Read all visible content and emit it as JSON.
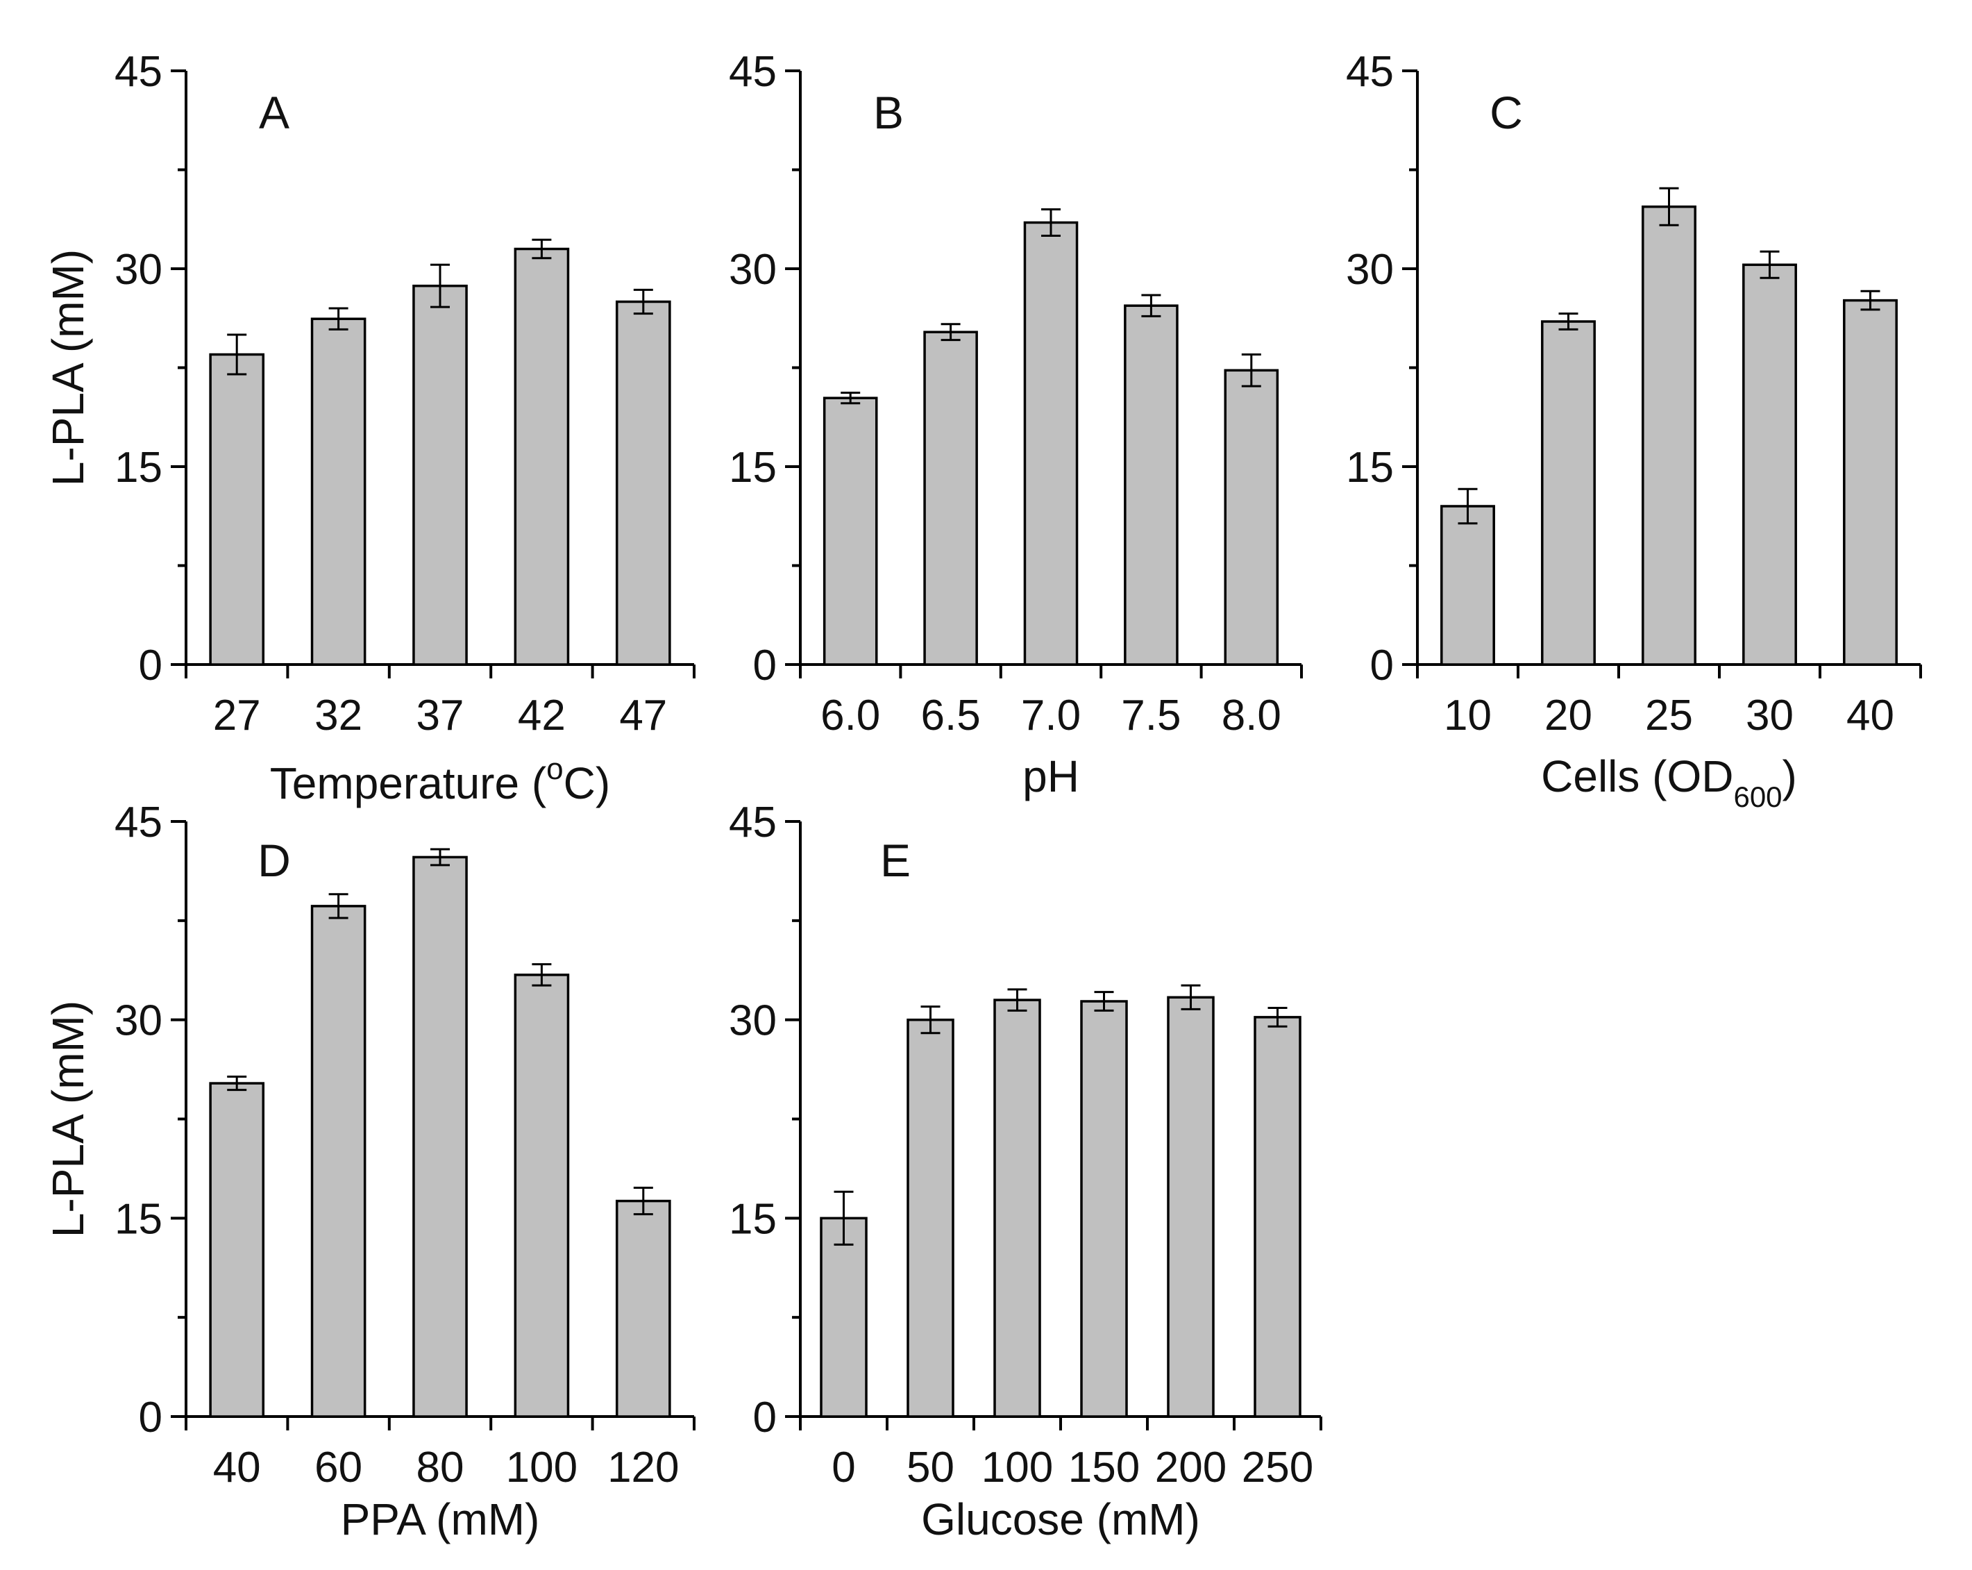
{
  "figure": {
    "ylabel": "L-PLA (mM)"
  },
  "chart_data": [
    {
      "type": "bar",
      "panel": "A",
      "categories": [
        "27",
        "32",
        "37",
        "42",
        "47"
      ],
      "values": [
        23.5,
        26.2,
        28.7,
        31.5,
        27.5
      ],
      "errors": [
        1.5,
        0.8,
        1.6,
        0.7,
        0.9
      ],
      "xlabel": "Temperature (",
      "xlabel_sup": "o",
      "xlabel_end": "C)",
      "ylabel": "L-PLA (mM)",
      "ylim": [
        0,
        45
      ],
      "yticks": [
        0,
        15,
        30,
        45
      ]
    },
    {
      "type": "bar",
      "panel": "B",
      "categories": [
        "6.0",
        "6.5",
        "7.0",
        "7.5",
        "8.0"
      ],
      "values": [
        20.2,
        25.2,
        33.5,
        27.2,
        22.3
      ],
      "errors": [
        0.4,
        0.6,
        1.0,
        0.8,
        1.2
      ],
      "xlabel": "pH",
      "ylabel": "",
      "ylim": [
        0,
        45
      ],
      "yticks": [
        0,
        15,
        30,
        45
      ]
    },
    {
      "type": "bar",
      "panel": "C",
      "categories": [
        "10",
        "20",
        "25",
        "30",
        "40"
      ],
      "values": [
        12.0,
        26.0,
        34.7,
        30.3,
        27.6
      ],
      "errors": [
        1.3,
        0.6,
        1.4,
        1.0,
        0.7
      ],
      "xlabel": "Cells (OD",
      "xlabel_sub": "600",
      "xlabel_end": ")",
      "ylabel": "",
      "ylim": [
        0,
        45
      ],
      "yticks": [
        0,
        15,
        30,
        45
      ]
    },
    {
      "type": "bar",
      "panel": "D",
      "categories": [
        "40",
        "60",
        "80",
        "100",
        "120"
      ],
      "values": [
        25.2,
        38.6,
        42.3,
        33.4,
        16.3
      ],
      "errors": [
        0.5,
        0.9,
        0.6,
        0.8,
        1.0
      ],
      "xlabel": "PPA (mM)",
      "ylabel": "L-PLA (mM)",
      "ylim": [
        0,
        45
      ],
      "yticks": [
        0,
        15,
        30,
        45
      ]
    },
    {
      "type": "bar",
      "panel": "E",
      "categories": [
        "0",
        "50",
        "100",
        "150",
        "200",
        "250"
      ],
      "values": [
        15.0,
        30.0,
        31.5,
        31.4,
        31.7,
        30.2
      ],
      "errors": [
        2.0,
        1.0,
        0.8,
        0.7,
        0.9,
        0.7
      ],
      "xlabel": "Glucose (mM)",
      "ylabel": "",
      "ylim": [
        0,
        45
      ],
      "yticks": [
        0,
        15,
        30,
        45
      ]
    }
  ]
}
